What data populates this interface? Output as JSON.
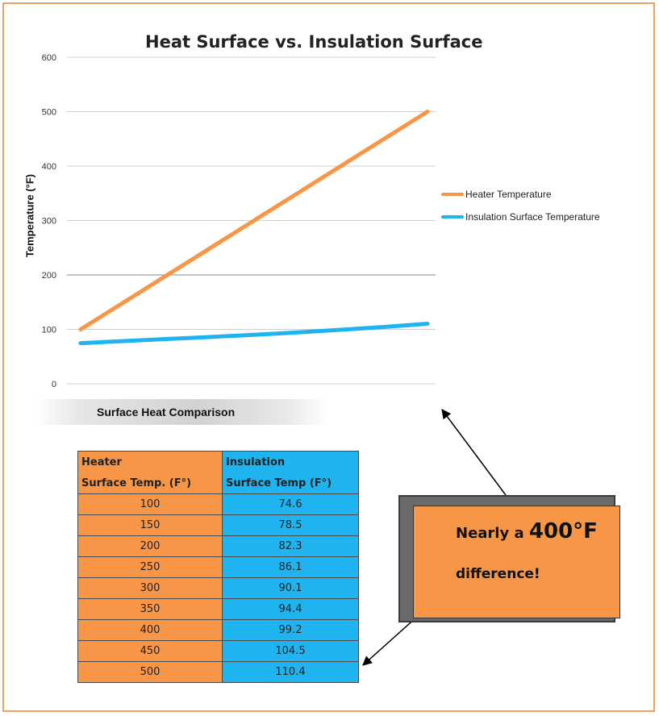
{
  "chart_data": {
    "type": "line",
    "title": "Heat Surface vs. Insulation Surface",
    "ylabel": "Temperature (°F)",
    "xlabel": "",
    "ylim": [
      0,
      600
    ],
    "yticks": [
      0,
      100,
      200,
      300,
      400,
      500,
      600
    ],
    "grid": "horizontal",
    "legend": "right",
    "x": [
      "100",
      "150",
      "200",
      "250",
      "300",
      "350",
      "400",
      "450",
      "500"
    ],
    "series": [
      {
        "name": "Heater Temperature",
        "color": "#f79646",
        "values": [
          100,
          150,
          200,
          250,
          300,
          350,
          400,
          450,
          500
        ]
      },
      {
        "name": "Insulation Surface Temperature",
        "color": "#1fb4f0",
        "values": [
          74.6,
          78.5,
          82.3,
          86.1,
          90.1,
          94.4,
          99.2,
          104.5,
          110.4
        ]
      }
    ]
  },
  "caption": "Surface Heat Comparison",
  "table": {
    "header": [
      [
        "Heater",
        "Surface Temp. (F°)"
      ],
      [
        "Insulation",
        "Surface Temp (F°)"
      ]
    ],
    "rows": [
      [
        "100",
        "74.6"
      ],
      [
        "150",
        "78.5"
      ],
      [
        "200",
        "82.3"
      ],
      [
        "250",
        "86.1"
      ],
      [
        "300",
        "90.1"
      ],
      [
        "350",
        "94.4"
      ],
      [
        "400",
        "99.2"
      ],
      [
        "450",
        "104.5"
      ],
      [
        "500",
        "110.4"
      ]
    ]
  },
  "callout": {
    "prefix": "Nearly a ",
    "emphasis": "400°F",
    "line2": "difference!"
  },
  "colors": {
    "heater": "#f79646",
    "insulation": "#1fb4f0",
    "frame": "#f0a060"
  }
}
